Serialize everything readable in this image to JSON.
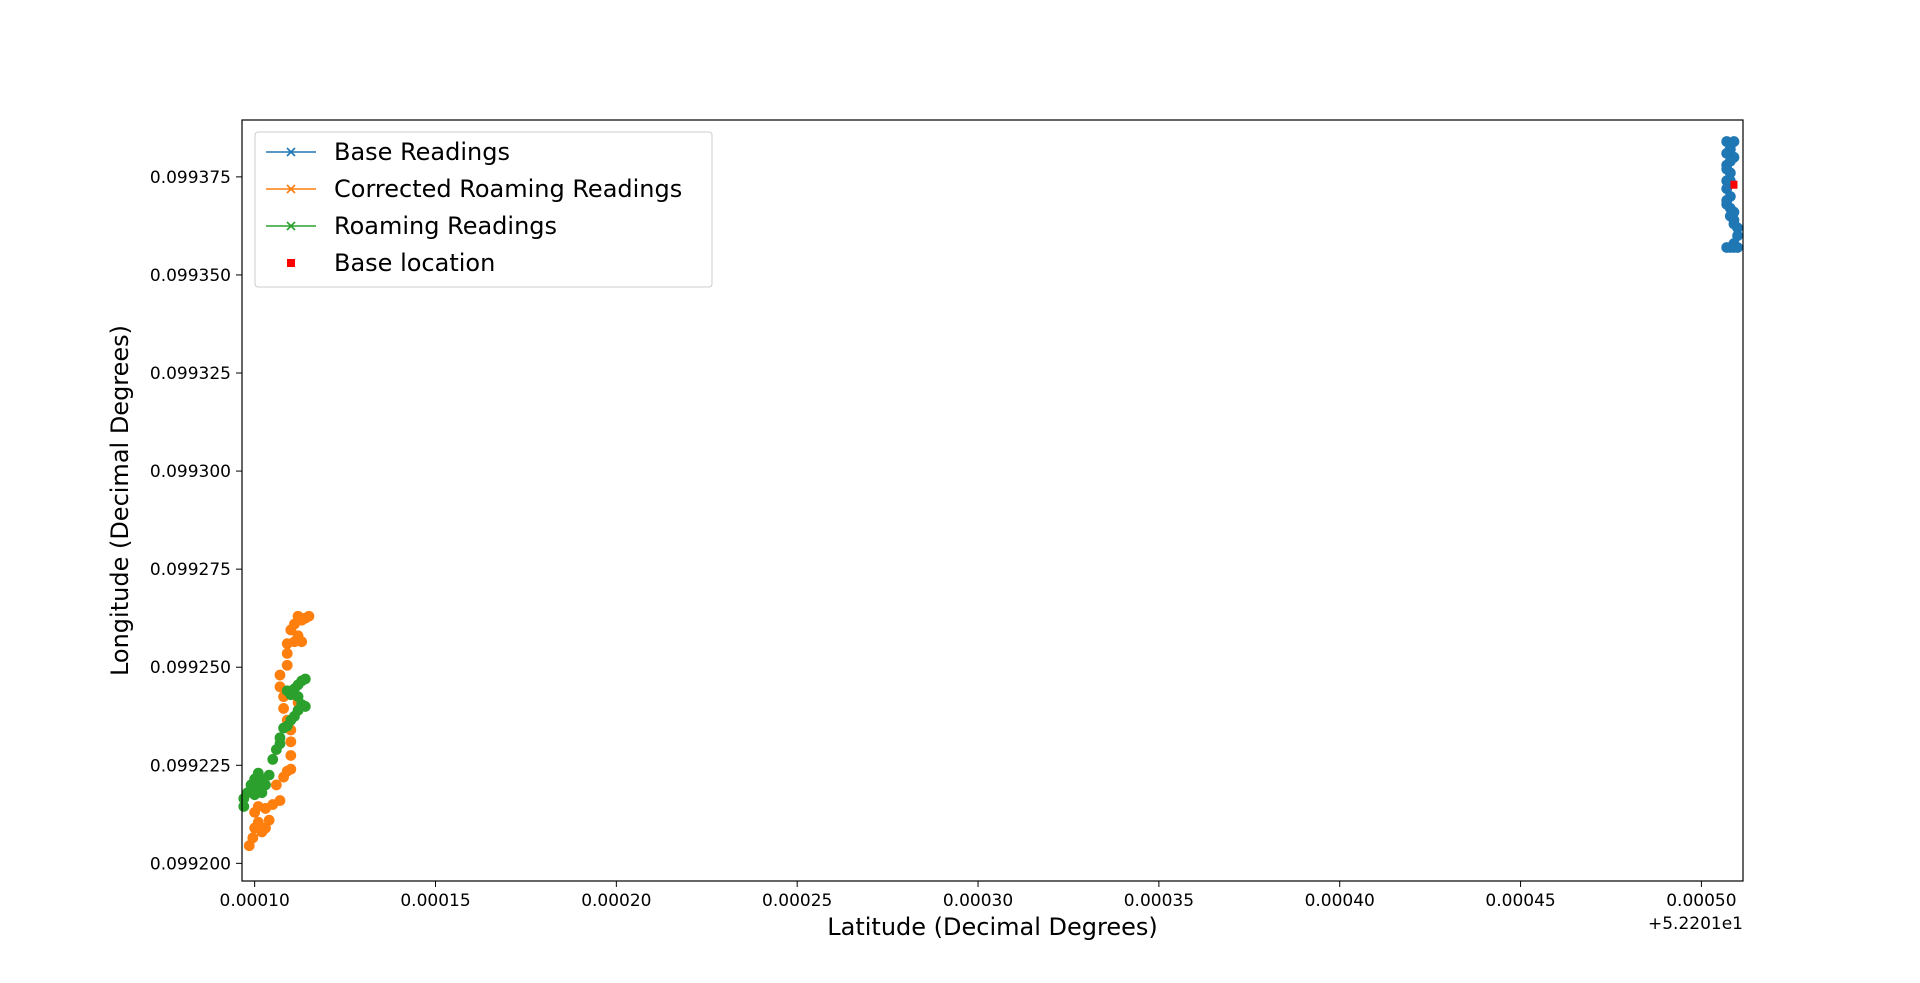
{
  "chart_data": {
    "type": "scatter",
    "xlabel": "Latitude (Decimal Degrees)",
    "ylabel": "Longitude (Decimal Degrees)",
    "x_offset_label": "+5.2201e1",
    "x_offset": 52.201,
    "xlim": [
      9.65e-05,
      0.0005115
    ],
    "ylim": [
      0.0991955,
      0.0993895
    ],
    "x_ticks": [
      0.0001,
      0.00015,
      0.0002,
      0.00025,
      0.0003,
      0.00035,
      0.0004,
      0.00045,
      0.0005
    ],
    "x_tick_labels": [
      "0.00010",
      "0.00015",
      "0.00020",
      "0.00025",
      "0.00030",
      "0.00035",
      "0.00040",
      "0.00045",
      "0.00050"
    ],
    "y_ticks": [
      0.0992,
      0.099225,
      0.09925,
      0.099275,
      0.0993,
      0.099325,
      0.09935,
      0.099375
    ],
    "y_tick_labels": [
      "0.099200",
      "0.099225",
      "0.099250",
      "0.099275",
      "0.099300",
      "0.099325",
      "0.099350",
      "0.099375"
    ],
    "grid": false,
    "legend_position": "upper-left",
    "series": [
      {
        "name": "Base Readings",
        "color": "#1f77b4",
        "marker": "circle",
        "points": [
          [
            0.000507,
            0.099384
          ],
          [
            0.000508,
            0.099382
          ],
          [
            0.000509,
            0.09938
          ],
          [
            0.000507,
            0.099378
          ],
          [
            0.000508,
            0.099376
          ],
          [
            0.000507,
            0.099374
          ],
          [
            0.000507,
            0.099372
          ],
          [
            0.000508,
            0.09937
          ],
          [
            0.000507,
            0.099368
          ],
          [
            0.000509,
            0.099366
          ],
          [
            0.000509,
            0.099364
          ],
          [
            0.00051,
            0.099362
          ],
          [
            0.000509,
            0.099363
          ],
          [
            0.000508,
            0.099365
          ],
          [
            0.00051,
            0.09936
          ],
          [
            0.000509,
            0.099358
          ],
          [
            0.000508,
            0.099357
          ],
          [
            0.000507,
            0.099357
          ],
          [
            0.00051,
            0.099357
          ],
          [
            0.000509,
            0.099357
          ],
          [
            0.000509,
            0.099384
          ],
          [
            0.000508,
            0.099383
          ],
          [
            0.000507,
            0.099381
          ],
          [
            0.000508,
            0.099379
          ],
          [
            0.000507,
            0.099377
          ],
          [
            0.000508,
            0.099374
          ],
          [
            0.000507,
            0.099369
          ],
          [
            0.000508,
            0.099367
          ]
        ]
      },
      {
        "name": "Corrected Roaming Readings",
        "color": "#ff7f0e",
        "marker": "circle",
        "points": [
          [
            9.85e-05,
            0.0992045
          ],
          [
            9.95e-05,
            0.0992065
          ],
          [
            0.0001,
            0.099209
          ],
          [
            0.000101,
            0.0992105
          ],
          [
            0.000102,
            0.099208
          ],
          [
            0.000103,
            0.099209
          ],
          [
            0.000104,
            0.099211
          ],
          [
            0.000103,
            0.099214
          ],
          [
            0.000101,
            0.0992145
          ],
          [
            0.0001,
            0.099213
          ],
          [
            0.000105,
            0.099215
          ],
          [
            0.000107,
            0.099216
          ],
          [
            0.000106,
            0.09922
          ],
          [
            0.000108,
            0.099222
          ],
          [
            0.000109,
            0.0992235
          ],
          [
            0.00011,
            0.099224
          ],
          [
            0.00011,
            0.0992275
          ],
          [
            0.00011,
            0.099231
          ],
          [
            0.00011,
            0.099234
          ],
          [
            0.000109,
            0.0992365
          ],
          [
            0.000108,
            0.0992395
          ],
          [
            0.000108,
            0.0992425
          ],
          [
            0.000107,
            0.099245
          ],
          [
            0.000107,
            0.099248
          ],
          [
            0.000109,
            0.0992505
          ],
          [
            0.000109,
            0.0992535
          ],
          [
            0.000109,
            0.099256
          ],
          [
            0.000111,
            0.0992565
          ],
          [
            0.000112,
            0.099258
          ],
          [
            0.00011,
            0.0992595
          ],
          [
            0.000111,
            0.099261
          ],
          [
            0.000113,
            0.099262
          ],
          [
            0.000114,
            0.0992625
          ],
          [
            0.000115,
            0.099263
          ],
          [
            0.000112,
            0.099263
          ],
          [
            0.000113,
            0.0992565
          ],
          [
            0.000111,
            0.099243
          ],
          [
            0.000112,
            0.099241
          ],
          [
            0.000109,
            0.0992435
          ]
        ]
      },
      {
        "name": "Roaming Readings",
        "color": "#2ca02c",
        "marker": "circle",
        "points": [
          [
            9.7e-05,
            0.0992145
          ],
          [
            9.7e-05,
            0.0992165
          ],
          [
            9.8e-05,
            0.099218
          ],
          [
            9.9e-05,
            0.09922
          ],
          [
            0.0001,
            0.0992215
          ],
          [
            0.000101,
            0.099223
          ],
          [
            0.000102,
            0.0992215
          ],
          [
            0.000103,
            0.09922
          ],
          [
            0.000102,
            0.099218
          ],
          [
            0.0001,
            0.0992175
          ],
          [
            0.000101,
            0.0992195
          ],
          [
            0.000104,
            0.0992225
          ],
          [
            0.000105,
            0.0992265
          ],
          [
            0.000106,
            0.099229
          ],
          [
            0.000107,
            0.0992305
          ],
          [
            0.000107,
            0.099232
          ],
          [
            0.000108,
            0.0992345
          ],
          [
            0.000109,
            0.099235
          ],
          [
            0.00011,
            0.0992365
          ],
          [
            0.000111,
            0.0992375
          ],
          [
            0.000112,
            0.099239
          ],
          [
            0.000113,
            0.0992405
          ],
          [
            0.000114,
            0.09924
          ],
          [
            0.000112,
            0.0992425
          ],
          [
            0.000111,
            0.0992445
          ],
          [
            0.000112,
            0.0992455
          ],
          [
            0.000113,
            0.0992465
          ],
          [
            0.000114,
            0.099247
          ],
          [
            0.000109,
            0.099244
          ],
          [
            0.00011,
            0.099243
          ]
        ]
      }
    ],
    "base_location": {
      "name": "Base location",
      "color": "#ff0000",
      "marker": "square",
      "point": [
        0.000509,
        0.099373
      ]
    },
    "legend": [
      {
        "label": "Base Readings",
        "color": "#1f77b4",
        "style": "line-x"
      },
      {
        "label": "Corrected Roaming Readings",
        "color": "#ff7f0e",
        "style": "line-x"
      },
      {
        "label": "Roaming Readings",
        "color": "#2ca02c",
        "style": "line-x"
      },
      {
        "label": "Base location",
        "color": "#ff0000",
        "style": "square"
      }
    ]
  }
}
